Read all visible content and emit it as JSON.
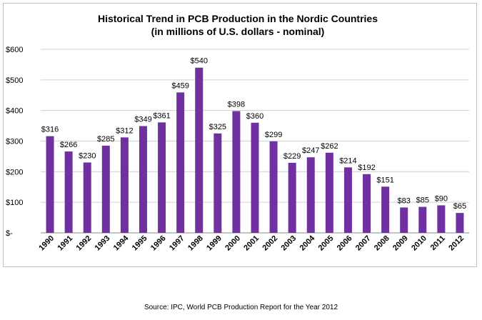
{
  "source_note": "Source: IPC, World PCB Production Report for the Year 2012",
  "chart_data": {
    "type": "bar",
    "title": "Historical Trend in PCB Production in the Nordic Countries",
    "subtitle": "(in millions of U.S. dollars - nominal)",
    "xlabel": "",
    "ylabel": "",
    "categories": [
      "1990",
      "1991",
      "1992",
      "1993",
      "1994",
      "1995",
      "1996",
      "1997",
      "1998",
      "1999",
      "2000",
      "2001",
      "2002",
      "2003",
      "2004",
      "2005",
      "2006",
      "2007",
      "2008",
      "2009",
      "2010",
      "2011",
      "2012"
    ],
    "values": [
      316,
      266,
      230,
      285,
      312,
      349,
      361,
      459,
      540,
      325,
      398,
      360,
      299,
      229,
      247,
      262,
      214,
      192,
      151,
      83,
      85,
      90,
      65
    ],
    "data_labels": [
      "$316",
      "$266",
      "$230",
      "$285",
      "$312",
      "$349",
      "$361",
      "$459",
      "$540",
      "$325",
      "$398",
      "$360",
      "$299",
      "$229",
      "$247",
      "$262",
      "$214",
      "$192",
      "$151",
      "$83",
      "$85",
      "$90",
      "$65"
    ],
    "ylim": [
      0,
      600
    ],
    "yticks": [
      0,
      100,
      200,
      300,
      400,
      500,
      600
    ],
    "ytick_labels": [
      "$-",
      "$100",
      "$200",
      "$300",
      "$400",
      "$500",
      "$600"
    ],
    "grid": true,
    "bar_color": "#7030a0"
  }
}
